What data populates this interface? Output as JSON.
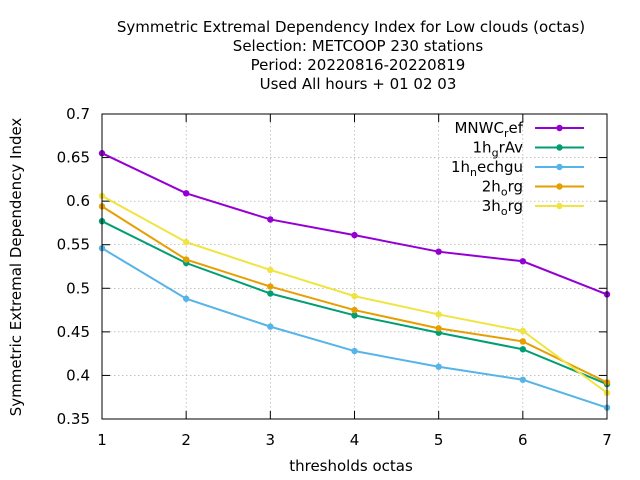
{
  "chart_data": {
    "type": "line",
    "title_lines": [
      "Symmetric Extremal Dependency Index  for Low clouds (octas)",
      "Selection: METCOOP    230 stations",
      "Period: 20220816-20220819",
      "Used  All hours  + 01 02 03"
    ],
    "xlabel": "thresholds octas",
    "ylabel": "Symmetric Extremal Dependency Index",
    "x": [
      1,
      2,
      3,
      4,
      5,
      6,
      7
    ],
    "xlim": [
      1,
      7
    ],
    "ylim": [
      0.35,
      0.7
    ],
    "xticks": [
      "1",
      "2",
      "3",
      "4",
      "5",
      "6",
      "7"
    ],
    "yticks": [
      "0.35",
      "0.4",
      "0.45",
      "0.5",
      "0.55",
      "0.6",
      "0.65",
      "0.7"
    ],
    "grid": true,
    "legend_position": "top-right",
    "series": [
      {
        "name": "MNWC",
        "sub": "r",
        "tail": "ef",
        "color": "#9400d3",
        "values": [
          0.655,
          0.609,
          0.579,
          0.561,
          0.542,
          0.531,
          0.493
        ]
      },
      {
        "name": "1h",
        "sub": "g",
        "tail": "rAv",
        "color": "#009e73",
        "values": [
          0.577,
          0.529,
          0.494,
          0.469,
          0.449,
          0.43,
          0.39
        ]
      },
      {
        "name": "1h",
        "sub": "n",
        "tail": "echgu",
        "color": "#56b4e9",
        "values": [
          0.546,
          0.488,
          0.456,
          0.428,
          0.41,
          0.395,
          0.363
        ]
      },
      {
        "name": "2h",
        "sub": "o",
        "tail": "rg",
        "color": "#e69f00",
        "values": [
          0.594,
          0.533,
          0.502,
          0.475,
          0.454,
          0.439,
          0.392
        ]
      },
      {
        "name": "3h",
        "sub": "o",
        "tail": "rg",
        "color": "#f0e442",
        "values": [
          0.606,
          0.553,
          0.521,
          0.491,
          0.47,
          0.451,
          0.38
        ]
      }
    ]
  }
}
